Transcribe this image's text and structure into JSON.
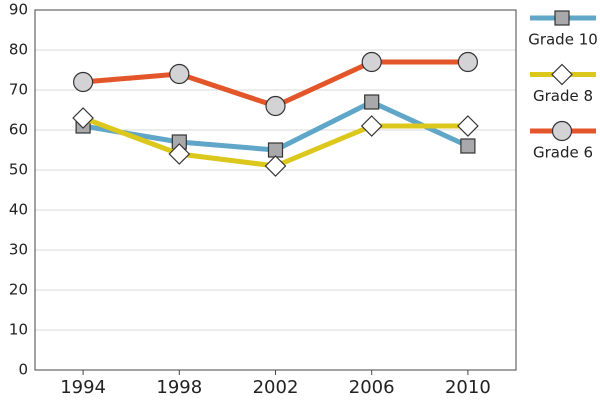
{
  "chart_data": {
    "type": "line",
    "x": [
      1994,
      1998,
      2002,
      2006,
      2010
    ],
    "xlim": [
      1992,
      2012
    ],
    "xticks": [
      1994,
      1998,
      2002,
      2006,
      2010
    ],
    "ylim": [
      0,
      90
    ],
    "yticks": [
      0,
      10,
      20,
      30,
      40,
      50,
      60,
      70,
      80,
      90
    ],
    "grid": true,
    "legend": "right",
    "series": [
      {
        "name": "Grade 10",
        "color": "#5fa6c8",
        "marker": "square",
        "values": [
          61,
          57,
          55,
          67,
          56
        ]
      },
      {
        "name": "Grade 8",
        "color": "#dcc81c",
        "marker": "diamond",
        "values": [
          63,
          54,
          51,
          61,
          61
        ]
      },
      {
        "name": "Grade 6",
        "color": "#e2562a",
        "marker": "circle",
        "values": [
          72,
          74,
          66,
          77,
          77
        ]
      }
    ]
  }
}
